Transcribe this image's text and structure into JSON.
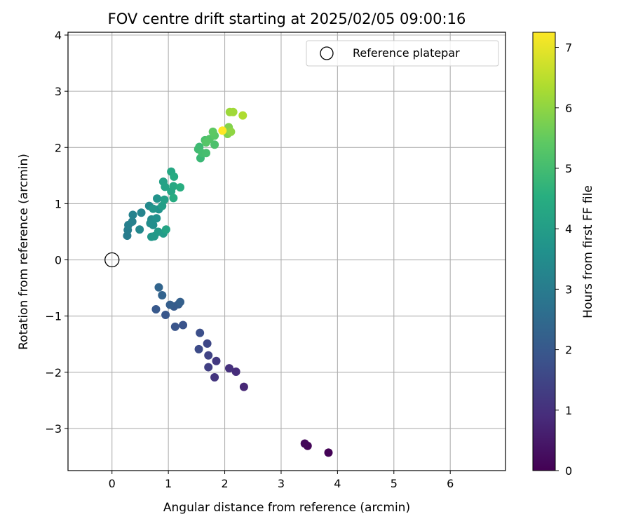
{
  "chart_data": {
    "type": "scatter",
    "title": "FOV centre drift starting at 2025/02/05 09:00:16",
    "xlabel": "Angular distance from reference (arcmin)",
    "ylabel": "Rotation from reference (arcmin)",
    "xlim": [
      -0.78,
      6.98
    ],
    "ylim": [
      -3.75,
      4.05
    ],
    "xticks": [
      0,
      1,
      2,
      3,
      4,
      5,
      6
    ],
    "yticks": [
      -3,
      -2,
      -1,
      0,
      1,
      2,
      3,
      4
    ],
    "grid": true,
    "legend": {
      "position": "top-right",
      "entries": [
        {
          "label": "Reference platepar",
          "marker": "open-circle"
        }
      ]
    },
    "reference_point": {
      "x": 0,
      "y": 0
    },
    "colorbar": {
      "label": "Hours from first FF file",
      "range": [
        0,
        7.25
      ],
      "ticks": [
        0,
        1,
        2,
        3,
        4,
        5,
        6,
        7
      ],
      "colormap": "viridis"
    },
    "series": [
      {
        "fields": [
          "x",
          "y",
          "hours"
        ],
        "points": [
          [
            3.84,
            -3.43,
            0.05
          ],
          [
            3.47,
            -3.31,
            0.1
          ],
          [
            3.42,
            -3.27,
            0.15
          ],
          [
            2.34,
            -2.26,
            0.8
          ],
          [
            2.2,
            -1.99,
            0.9
          ],
          [
            2.08,
            -1.93,
            1.0
          ],
          [
            1.82,
            -2.09,
            1.1
          ],
          [
            1.85,
            -1.8,
            1.2
          ],
          [
            1.71,
            -1.91,
            1.35
          ],
          [
            1.71,
            -1.7,
            1.45
          ],
          [
            1.69,
            -1.49,
            1.55
          ],
          [
            1.54,
            -1.59,
            1.65
          ],
          [
            1.56,
            -1.3,
            1.75
          ],
          [
            1.26,
            -1.16,
            1.85
          ],
          [
            1.12,
            -1.19,
            1.9
          ],
          [
            0.95,
            -0.98,
            1.95
          ],
          [
            0.78,
            -0.88,
            2.0
          ],
          [
            1.1,
            -0.83,
            2.05
          ],
          [
            1.18,
            -0.79,
            2.1
          ],
          [
            1.03,
            -0.8,
            2.15
          ],
          [
            1.21,
            -0.75,
            2.2
          ],
          [
            0.89,
            -0.63,
            2.3
          ],
          [
            0.83,
            -0.49,
            2.35
          ],
          [
            0.27,
            0.43,
            3.0
          ],
          [
            0.28,
            0.53,
            3.05
          ],
          [
            0.29,
            0.62,
            3.1
          ],
          [
            0.36,
            0.68,
            3.15
          ],
          [
            0.37,
            0.8,
            3.2
          ],
          [
            0.52,
            0.84,
            3.25
          ],
          [
            0.49,
            0.54,
            3.35
          ],
          [
            0.66,
            0.96,
            3.4
          ],
          [
            0.7,
            0.72,
            3.45
          ],
          [
            0.68,
            0.65,
            3.5
          ],
          [
            0.73,
            0.62,
            3.55
          ],
          [
            0.79,
            0.74,
            3.6
          ],
          [
            0.83,
            0.9,
            3.65
          ],
          [
            0.8,
            1.09,
            3.7
          ],
          [
            0.73,
            0.91,
            3.75
          ],
          [
            0.7,
            0.41,
            3.8
          ],
          [
            0.75,
            0.42,
            3.85
          ],
          [
            0.82,
            0.5,
            3.9
          ],
          [
            0.91,
            0.47,
            3.95
          ],
          [
            0.89,
            0.96,
            4.0
          ],
          [
            0.93,
            1.07,
            4.05
          ],
          [
            0.91,
            1.39,
            4.1
          ],
          [
            0.94,
            1.3,
            4.15
          ],
          [
            0.96,
            0.54,
            4.2
          ],
          [
            1.05,
            1.22,
            4.25
          ],
          [
            1.05,
            1.57,
            4.3
          ],
          [
            1.09,
            1.31,
            4.35
          ],
          [
            1.1,
            1.48,
            4.4
          ],
          [
            1.09,
            1.1,
            4.45
          ],
          [
            1.21,
            1.29,
            4.5
          ],
          [
            1.57,
            1.81,
            4.85
          ],
          [
            1.55,
            2.01,
            4.9
          ],
          [
            1.53,
            1.97,
            4.95
          ],
          [
            1.6,
            1.9,
            5.0
          ],
          [
            1.67,
            1.9,
            5.05
          ],
          [
            1.65,
            2.13,
            5.1
          ],
          [
            1.82,
            2.05,
            5.15
          ],
          [
            1.73,
            2.15,
            5.25
          ],
          [
            1.67,
            2.09,
            5.3
          ],
          [
            1.82,
            2.21,
            5.35
          ],
          [
            1.79,
            2.28,
            5.4
          ],
          [
            2.05,
            2.24,
            5.8
          ],
          [
            2.07,
            2.36,
            5.85
          ],
          [
            2.11,
            2.28,
            6.0
          ],
          [
            2.09,
            2.63,
            6.15
          ],
          [
            2.15,
            2.63,
            6.2
          ],
          [
            2.32,
            2.57,
            6.35
          ],
          [
            1.96,
            2.3,
            7.25
          ]
        ]
      }
    ]
  }
}
